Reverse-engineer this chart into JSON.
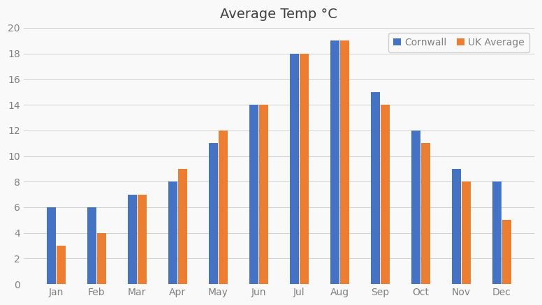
{
  "title": "Average Temp °C",
  "months": [
    "Jan",
    "Feb",
    "Mar",
    "Apr",
    "May",
    "Jun",
    "Jul",
    "Aug",
    "Sep",
    "Oct",
    "Nov",
    "Dec"
  ],
  "cornwall": [
    6,
    6,
    7,
    8,
    11,
    14,
    18,
    19,
    15,
    12,
    9,
    8
  ],
  "uk_average": [
    3,
    4,
    7,
    9,
    12,
    14,
    18,
    19,
    14,
    11,
    8,
    5
  ],
  "cornwall_color": "#4472C4",
  "uk_color": "#ED7D31",
  "cornwall_label": "Cornwall",
  "uk_label": "UK Average",
  "ylim": [
    0,
    20
  ],
  "yticks": [
    0,
    2,
    4,
    6,
    8,
    10,
    12,
    14,
    16,
    18,
    20
  ],
  "title_fontsize": 14,
  "background_color": "#f9f9f9",
  "grid_color": "#d0d0d0",
  "bar_width": 0.22,
  "tick_label_color": "#808080",
  "title_color": "#404040"
}
